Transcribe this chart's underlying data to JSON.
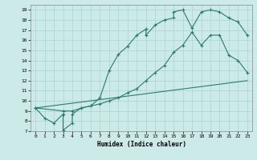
{
  "xlabel": "Humidex (Indice chaleur)",
  "xlim": [
    -0.5,
    23.5
  ],
  "ylim": [
    7,
    19.5
  ],
  "xticks": [
    0,
    1,
    2,
    3,
    4,
    5,
    6,
    7,
    8,
    9,
    10,
    11,
    12,
    13,
    14,
    15,
    16,
    17,
    18,
    19,
    20,
    21,
    22,
    23
  ],
  "yticks": [
    7,
    8,
    9,
    10,
    11,
    12,
    13,
    14,
    15,
    16,
    17,
    18,
    19
  ],
  "line_color": "#2d7a6e",
  "bg_color": "#cceae7",
  "grid_color": "#aad4cf",
  "line1_x": [
    0,
    1,
    2,
    3,
    3,
    4,
    4,
    5,
    6,
    7,
    8,
    9,
    10,
    11,
    12,
    12,
    13,
    14,
    15,
    15,
    16,
    17,
    18,
    19,
    20,
    21,
    22,
    23
  ],
  "line1_y": [
    9.3,
    8.3,
    7.8,
    8.7,
    7.1,
    7.8,
    8.7,
    9.3,
    9.5,
    10.3,
    13.0,
    14.6,
    15.4,
    16.5,
    17.1,
    16.5,
    17.5,
    18.0,
    18.2,
    18.8,
    19.0,
    17.2,
    18.8,
    19.0,
    18.8,
    18.2,
    17.8,
    16.5
  ],
  "line2_x": [
    0,
    3,
    4,
    5,
    6,
    7,
    8,
    9,
    10,
    11,
    12,
    13,
    14,
    15,
    16,
    17,
    18,
    19,
    20,
    21,
    22,
    23
  ],
  "line2_y": [
    9.3,
    9.0,
    9.0,
    9.3,
    9.5,
    9.7,
    10.0,
    10.3,
    10.8,
    11.2,
    12.0,
    12.8,
    13.5,
    14.8,
    15.5,
    16.8,
    15.5,
    16.5,
    16.5,
    14.5,
    14.0,
    12.8
  ],
  "line3_x": [
    0,
    23
  ],
  "line3_y": [
    9.3,
    12.0
  ],
  "marker": "+"
}
